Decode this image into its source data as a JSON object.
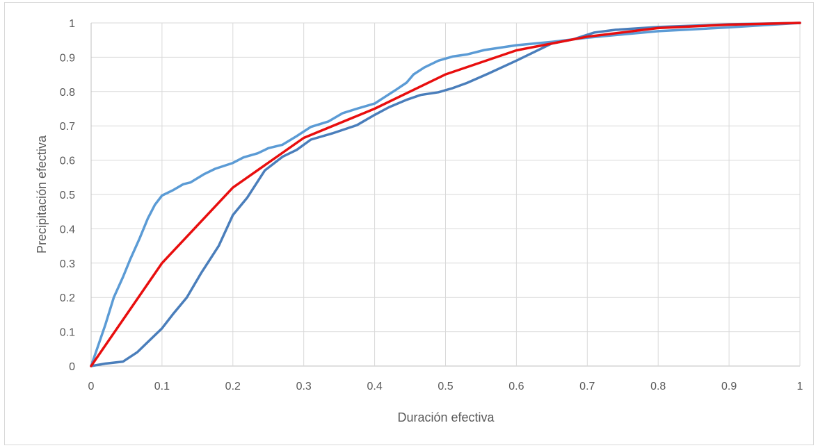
{
  "chart_data": {
    "type": "line",
    "title": "",
    "xlabel": "Duración efectiva",
    "ylabel": "Precipitación efectiva",
    "xlim": [
      0,
      1
    ],
    "ylim": [
      0,
      1
    ],
    "x_ticks": [
      "0",
      "0.1",
      "0.2",
      "0.3",
      "0.4",
      "0.5",
      "0.6",
      "0.7",
      "0.8",
      "0.9",
      "1"
    ],
    "y_ticks": [
      "0",
      "0.1",
      "0.2",
      "0.3",
      "0.4",
      "0.5",
      "0.6",
      "0.7",
      "0.8",
      "0.9",
      "1"
    ],
    "grid": true,
    "legend": "none",
    "series": [
      {
        "color": "#5B9BD5",
        "points": [
          [
            0,
            0
          ],
          [
            0.01,
            0.06
          ],
          [
            0.02,
            0.12
          ],
          [
            0.032,
            0.2
          ],
          [
            0.045,
            0.26
          ],
          [
            0.055,
            0.31
          ],
          [
            0.068,
            0.37
          ],
          [
            0.08,
            0.43
          ],
          [
            0.09,
            0.47
          ],
          [
            0.1,
            0.497
          ],
          [
            0.115,
            0.512
          ],
          [
            0.13,
            0.53
          ],
          [
            0.14,
            0.535
          ],
          [
            0.16,
            0.56
          ],
          [
            0.175,
            0.575
          ],
          [
            0.2,
            0.592
          ],
          [
            0.215,
            0.608
          ],
          [
            0.235,
            0.62
          ],
          [
            0.25,
            0.635
          ],
          [
            0.27,
            0.645
          ],
          [
            0.29,
            0.67
          ],
          [
            0.31,
            0.697
          ],
          [
            0.335,
            0.713
          ],
          [
            0.355,
            0.737
          ],
          [
            0.375,
            0.75
          ],
          [
            0.4,
            0.765
          ],
          [
            0.415,
            0.785
          ],
          [
            0.43,
            0.805
          ],
          [
            0.445,
            0.826
          ],
          [
            0.455,
            0.85
          ],
          [
            0.47,
            0.87
          ],
          [
            0.49,
            0.89
          ],
          [
            0.51,
            0.902
          ],
          [
            0.53,
            0.908
          ],
          [
            0.555,
            0.921
          ],
          [
            0.6,
            0.935
          ],
          [
            0.65,
            0.945
          ],
          [
            0.7,
            0.957
          ],
          [
            0.8,
            0.976
          ],
          [
            0.9,
            0.987
          ],
          [
            1,
            1
          ]
        ]
      },
      {
        "color": "#4A7EBB",
        "points": [
          [
            0,
            0
          ],
          [
            0.02,
            0.007
          ],
          [
            0.045,
            0.013
          ],
          [
            0.065,
            0.04
          ],
          [
            0.085,
            0.08
          ],
          [
            0.1,
            0.11
          ],
          [
            0.115,
            0.15
          ],
          [
            0.135,
            0.2
          ],
          [
            0.155,
            0.27
          ],
          [
            0.18,
            0.35
          ],
          [
            0.2,
            0.44
          ],
          [
            0.22,
            0.49
          ],
          [
            0.245,
            0.57
          ],
          [
            0.27,
            0.61
          ],
          [
            0.29,
            0.63
          ],
          [
            0.31,
            0.66
          ],
          [
            0.34,
            0.678
          ],
          [
            0.375,
            0.702
          ],
          [
            0.4,
            0.732
          ],
          [
            0.42,
            0.754
          ],
          [
            0.445,
            0.776
          ],
          [
            0.465,
            0.79
          ],
          [
            0.49,
            0.798
          ],
          [
            0.51,
            0.81
          ],
          [
            0.53,
            0.825
          ],
          [
            0.56,
            0.852
          ],
          [
            0.6,
            0.89
          ],
          [
            0.65,
            0.94
          ],
          [
            0.68,
            0.952
          ],
          [
            0.71,
            0.972
          ],
          [
            0.74,
            0.98
          ],
          [
            0.8,
            0.988
          ],
          [
            0.9,
            0.996
          ],
          [
            1,
            1
          ]
        ]
      },
      {
        "color": "#E80E0E",
        "points": [
          [
            0,
            0
          ],
          [
            0.1,
            0.3
          ],
          [
            0.2,
            0.52
          ],
          [
            0.3,
            0.665
          ],
          [
            0.4,
            0.75
          ],
          [
            0.5,
            0.85
          ],
          [
            0.6,
            0.92
          ],
          [
            0.7,
            0.96
          ],
          [
            0.8,
            0.985
          ],
          [
            0.9,
            0.995
          ],
          [
            1,
            1
          ]
        ]
      }
    ]
  }
}
